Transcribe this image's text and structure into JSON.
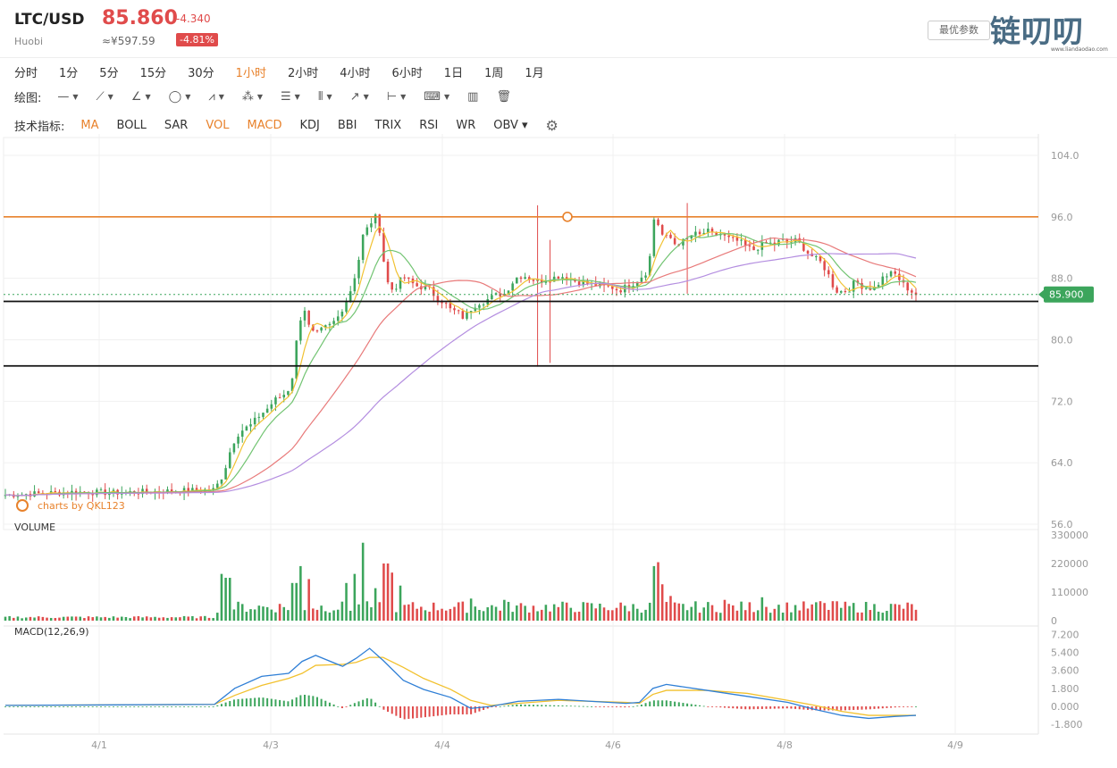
{
  "header": {
    "pair": "LTC/USD",
    "exchange": "Huobi",
    "price": "85.860",
    "change": "-4.340",
    "cny": "≈¥597.59",
    "change_pct": "-4.81%",
    "params_button": "最优参数",
    "logo": "链叨叨",
    "logo_sub": "www.liandaodao.com"
  },
  "periods": [
    "分时",
    "1分",
    "5分",
    "15分",
    "30分",
    "1小时",
    "2小时",
    "4小时",
    "6小时",
    "1日",
    "1周",
    "1月"
  ],
  "active_period": "1小时",
  "draw_label": "绘图:",
  "draw_tools": [
    {
      "name": "line-tool-icon",
      "glyph": "—"
    },
    {
      "name": "ray-tool-icon",
      "glyph": "⟋"
    },
    {
      "name": "angle-tool-icon",
      "glyph": "∠"
    },
    {
      "name": "shape-tool-icon",
      "glyph": "◯"
    },
    {
      "name": "pattern-tool-icon",
      "glyph": "⩘"
    },
    {
      "name": "fib-tool-icon",
      "glyph": "⁂"
    },
    {
      "name": "level-tool-icon",
      "glyph": "☰"
    },
    {
      "name": "channel-tool-icon",
      "glyph": "⦀"
    },
    {
      "name": "arrow-tool-icon",
      "glyph": "↗"
    },
    {
      "name": "measure-tool-icon",
      "glyph": "⊢"
    },
    {
      "name": "note-tool-icon",
      "glyph": "⌨"
    }
  ],
  "indicator_label": "技术指标:",
  "indicators": [
    "MA",
    "BOLL",
    "SAR",
    "VOL",
    "MACD",
    "KDJ",
    "BBI",
    "TRIX",
    "RSI",
    "WR",
    "OBV"
  ],
  "indicators_on": [
    "MA",
    "VOL",
    "MACD"
  ],
  "watermark": "charts by QKL123",
  "colors": {
    "up": "#3ca55c",
    "down": "#e04b4b",
    "accent": "#e8822c",
    "ma1": "#f1c232",
    "ma2": "#72c472",
    "ma3": "#e87a7a",
    "ma4": "#b48ee0",
    "dif": "#2f7fd6",
    "dea": "#f2c12e"
  },
  "chart_data": {
    "type": "candlestick",
    "x_ticks": [
      "4/1",
      "4/3",
      "4/4",
      "4/6",
      "4/8",
      "4/9"
    ],
    "price_ticks": [
      "104.0",
      "96.0",
      "88.0",
      "80.0",
      "72.0",
      "64.0",
      "56.0"
    ],
    "ylim": [
      56,
      104
    ],
    "last_price_label": "85.900",
    "horizontal_levels": [
      96.0,
      85.0,
      76.6
    ],
    "close_path": [
      [
        0,
        59.8
      ],
      [
        5,
        60.2
      ],
      [
        8,
        60.1
      ],
      [
        12,
        60.3
      ],
      [
        15.5,
        60.5
      ],
      [
        16.0,
        62.0
      ],
      [
        16.3,
        63.3
      ],
      [
        16.6,
        65.2
      ],
      [
        17.1,
        67.5
      ],
      [
        17.6,
        68.3
      ],
      [
        18.2,
        68.9
      ],
      [
        18.8,
        70.1
      ],
      [
        19.4,
        71.0
      ],
      [
        20.0,
        72.2
      ],
      [
        20.6,
        72.8
      ],
      [
        21.2,
        74.0
      ],
      [
        21.4,
        77.5
      ],
      [
        21.8,
        82.5
      ],
      [
        22.2,
        84.0
      ],
      [
        22.6,
        81.0
      ],
      [
        23.1,
        80.8
      ],
      [
        23.6,
        81.5
      ],
      [
        24.1,
        81.9
      ],
      [
        24.6,
        82.8
      ],
      [
        25.1,
        84.5
      ],
      [
        25.6,
        86.5
      ],
      [
        26.1,
        89.5
      ],
      [
        26.5,
        93.5
      ],
      [
        27.0,
        95.0
      ],
      [
        27.4,
        96.1
      ],
      [
        27.8,
        94.0
      ],
      [
        28.2,
        88.0
      ],
      [
        28.6,
        86.5
      ],
      [
        29.0,
        87.0
      ],
      [
        29.5,
        88.3
      ],
      [
        30.0,
        87.5
      ],
      [
        30.5,
        87.0
      ],
      [
        31.0,
        86.8
      ],
      [
        31.5,
        86.5
      ],
      [
        32.0,
        85.3
      ],
      [
        32.5,
        85.0
      ],
      [
        33.0,
        83.9
      ],
      [
        33.5,
        83.6
      ],
      [
        34.0,
        82.8
      ],
      [
        34.5,
        84.0
      ],
      [
        35.0,
        84.8
      ],
      [
        35.5,
        85.0
      ],
      [
        36.0,
        85.5
      ],
      [
        36.5,
        85.9
      ],
      [
        37.0,
        86.0
      ],
      [
        37.5,
        87.3
      ],
      [
        38.0,
        88.3
      ],
      [
        38.5,
        88.3
      ],
      [
        39.0,
        87.9
      ],
      [
        39.5,
        87.6
      ],
      [
        40.0,
        87.8
      ],
      [
        40.5,
        88.0
      ],
      [
        41.0,
        88.3
      ],
      [
        41.5,
        88.2
      ],
      [
        42.0,
        87.8
      ],
      [
        42.5,
        87.5
      ],
      [
        43.0,
        87.4
      ],
      [
        43.5,
        87.2
      ],
      [
        44.0,
        87.0
      ],
      [
        44.5,
        86.9
      ],
      [
        45.0,
        86.8
      ],
      [
        45.5,
        86.4
      ],
      [
        46.0,
        86.9
      ],
      [
        46.5,
        87.3
      ],
      [
        47.0,
        88.0
      ],
      [
        47.5,
        88.8
      ],
      [
        47.8,
        91.0
      ],
      [
        48.1,
        96.0
      ],
      [
        48.4,
        95.0
      ],
      [
        48.8,
        93.2
      ],
      [
        49.2,
        93.5
      ],
      [
        49.6,
        92.5
      ],
      [
        50.0,
        92.6
      ],
      [
        50.5,
        93.0
      ],
      [
        51.0,
        93.8
      ],
      [
        51.5,
        93.6
      ],
      [
        52.0,
        94.2
      ],
      [
        52.5,
        93.6
      ],
      [
        53.0,
        93.8
      ],
      [
        53.5,
        93.2
      ],
      [
        54.0,
        93.0
      ],
      [
        54.5,
        92.7
      ],
      [
        55.0,
        92.0
      ],
      [
        55.5,
        91.7
      ],
      [
        56.0,
        92.3
      ],
      [
        56.5,
        92.6
      ],
      [
        57.0,
        92.4
      ],
      [
        57.5,
        93.0
      ],
      [
        58.0,
        92.6
      ],
      [
        58.5,
        93.0
      ],
      [
        59.0,
        92.3
      ],
      [
        59.5,
        91.3
      ],
      [
        60.0,
        90.6
      ],
      [
        60.5,
        90.0
      ],
      [
        61.0,
        88.5
      ],
      [
        61.5,
        86.4
      ],
      [
        62.0,
        86.3
      ],
      [
        62.5,
        86.5
      ],
      [
        63.0,
        87.6
      ],
      [
        63.5,
        87.0
      ],
      [
        64.0,
        86.7
      ],
      [
        64.5,
        86.8
      ],
      [
        65.0,
        88.0
      ],
      [
        65.5,
        88.6
      ],
      [
        66.0,
        88.5
      ],
      [
        66.5,
        87.3
      ],
      [
        67.0,
        86.5
      ],
      [
        67.5,
        85.9
      ]
    ],
    "ma_lines": [
      "MA1",
      "MA2",
      "MA3",
      "MA4"
    ],
    "volume": {
      "label": "VOLUME",
      "ticks": [
        "330000",
        "220000",
        "110000",
        "0"
      ],
      "ylim": [
        0,
        330000
      ],
      "spikes": [
        [
          16.0,
          180000
        ],
        [
          16.5,
          165000
        ],
        [
          21.4,
          145000
        ],
        [
          21.8,
          210000
        ],
        [
          22.4,
          160000
        ],
        [
          25.2,
          145000
        ],
        [
          26.0,
          180000
        ],
        [
          26.5,
          300000
        ],
        [
          27.4,
          125000
        ],
        [
          28.2,
          220000
        ],
        [
          28.7,
          185000
        ],
        [
          29.2,
          135000
        ],
        [
          34.5,
          85000
        ],
        [
          36.9,
          80000
        ],
        [
          48.0,
          210000
        ],
        [
          48.3,
          225000
        ],
        [
          48.8,
          140000
        ],
        [
          49.4,
          95000
        ],
        [
          53.4,
          80000
        ],
        [
          56.0,
          90000
        ],
        [
          60.5,
          75000
        ],
        [
          61.3,
          75000
        ]
      ]
    },
    "macd": {
      "label": "MACD(12,26,9)",
      "ticks": [
        "7.200",
        "5.400",
        "3.600",
        "1.800",
        "0.000",
        "-1.800"
      ],
      "ylim": [
        -2.5,
        7.5
      ],
      "dif": [
        [
          0,
          0.1
        ],
        [
          15.5,
          0.2
        ],
        [
          17,
          1.8
        ],
        [
          19,
          3.0
        ],
        [
          21,
          3.3
        ],
        [
          22,
          4.5
        ],
        [
          23,
          5.1
        ],
        [
          25,
          4.0
        ],
        [
          26,
          4.8
        ],
        [
          27,
          5.8
        ],
        [
          28,
          4.6
        ],
        [
          29.5,
          2.6
        ],
        [
          31,
          1.7
        ],
        [
          33,
          0.9
        ],
        [
          34.5,
          -0.2
        ],
        [
          36,
          0.0
        ],
        [
          38,
          0.5
        ],
        [
          41,
          0.7
        ],
        [
          46,
          0.3
        ],
        [
          47,
          0.4
        ],
        [
          48,
          1.8
        ],
        [
          49,
          2.2
        ],
        [
          52,
          1.6
        ],
        [
          55,
          1.0
        ],
        [
          58,
          0.4
        ],
        [
          60,
          -0.3
        ],
        [
          62,
          -0.9
        ],
        [
          64,
          -1.2
        ],
        [
          66,
          -1.0
        ],
        [
          67.5,
          -0.9
        ]
      ],
      "dea": [
        [
          0,
          0.1
        ],
        [
          15.5,
          0.2
        ],
        [
          17,
          1.1
        ],
        [
          19,
          2.1
        ],
        [
          21,
          2.8
        ],
        [
          22,
          3.3
        ],
        [
          23,
          4.1
        ],
        [
          25,
          4.2
        ],
        [
          26,
          4.4
        ],
        [
          27,
          4.9
        ],
        [
          28,
          4.9
        ],
        [
          29.5,
          3.9
        ],
        [
          31,
          2.8
        ],
        [
          33,
          1.7
        ],
        [
          34.5,
          0.6
        ],
        [
          36,
          0.1
        ],
        [
          38,
          0.3
        ],
        [
          41,
          0.6
        ],
        [
          46,
          0.4
        ],
        [
          47,
          0.3
        ],
        [
          48,
          1.2
        ],
        [
          49,
          1.6
        ],
        [
          52,
          1.6
        ],
        [
          55,
          1.3
        ],
        [
          58,
          0.6
        ],
        [
          60,
          0.1
        ],
        [
          62,
          -0.5
        ],
        [
          64,
          -0.9
        ],
        [
          66,
          -0.9
        ],
        [
          67.5,
          -0.9
        ]
      ]
    }
  }
}
